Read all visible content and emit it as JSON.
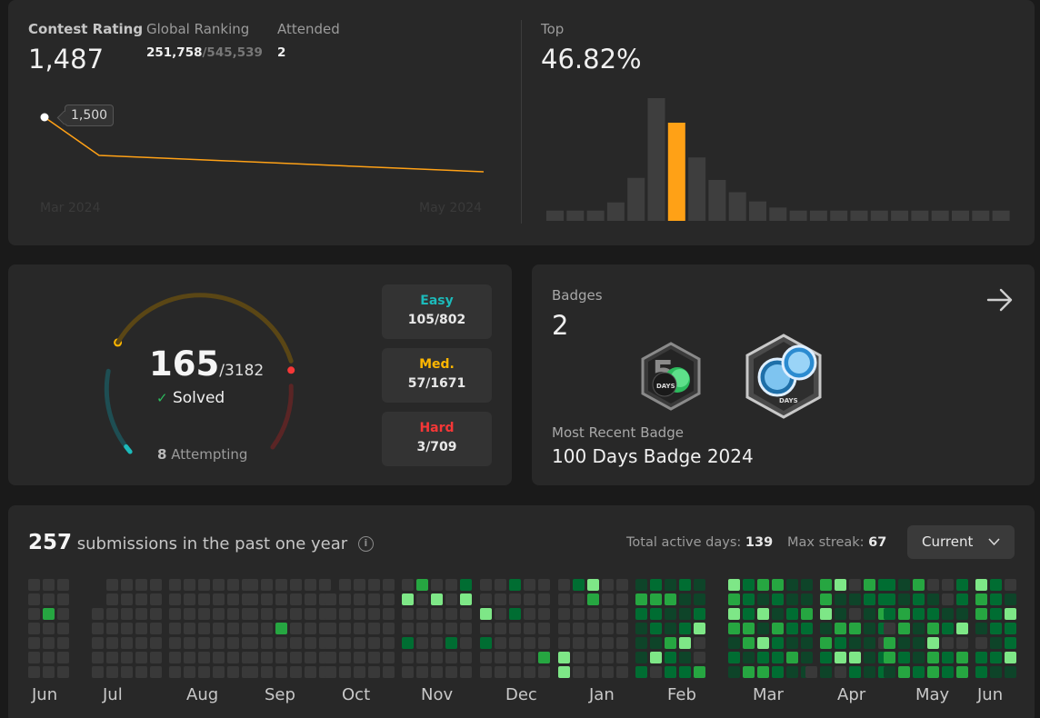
{
  "contest": {
    "rating_label": "Contest Rating",
    "rating_value": "1,487",
    "ranking_label": "Global Ranking",
    "ranking_value": "251,758",
    "ranking_total": "/545,539",
    "attended_label": "Attended",
    "attended_value": "2",
    "top_label": "Top",
    "top_value": "46.82%",
    "tooltip_value": "1,500",
    "axis_start": "Mar 2024",
    "axis_end": "May 2024",
    "line_color": "#ffa116"
  },
  "chart_data": {
    "type": "bar",
    "title": "",
    "values": [
      1,
      1,
      1,
      1.8,
      4.2,
      12,
      9.6,
      6.2,
      4,
      2.8,
      1.9,
      1.3,
      1,
      1,
      1,
      1,
      1,
      1,
      1,
      1,
      1,
      1,
      1
    ],
    "highlight_index": 6,
    "highlight_color": "#ffa116",
    "bar_color": "#3e3e3e",
    "ylim": [
      0,
      12
    ]
  },
  "solved": {
    "count": "165",
    "total": "/3182",
    "solved_label": "Solved",
    "attempting_count": "8",
    "attempting_label": "Attempting",
    "easy_label": "Easy",
    "easy_value": "105/802",
    "easy_color": "#1cbaba",
    "medium_label": "Med.",
    "medium_value": "57/1671",
    "medium_color": "#ffb700",
    "hard_label": "Hard",
    "hard_value": "3/709",
    "hard_color": "#f63737",
    "easy_progress": 0.131,
    "medium_progress": 0.034,
    "hard_progress": 0.004
  },
  "badges": {
    "label": "Badges",
    "count": "2",
    "recent_label": "Most Recent Badge",
    "recent_name": "100 Days Badge 2024",
    "badge1_icon": "50-days-badge-icon",
    "badge1_text": "DAYS",
    "badge2_icon": "100-days-badge-icon",
    "badge2_text": "DAYS"
  },
  "calendar": {
    "submissions": "257",
    "submissions_label": "submissions in the past one year",
    "active_days_label": "Total active days:",
    "active_days": "139",
    "streak_label": "Max streak:",
    "streak": "67",
    "select_value": "Current",
    "months": [
      "Jun",
      "Jul",
      "Aug",
      "Sep",
      "Oct",
      "Nov",
      "Dec",
      "Jan",
      "Feb",
      "Mar",
      "Apr",
      "May",
      "Jun"
    ],
    "palette": [
      "#393939",
      "#0e4429",
      "#006d32",
      "#26a641",
      "#7ee787"
    ]
  }
}
